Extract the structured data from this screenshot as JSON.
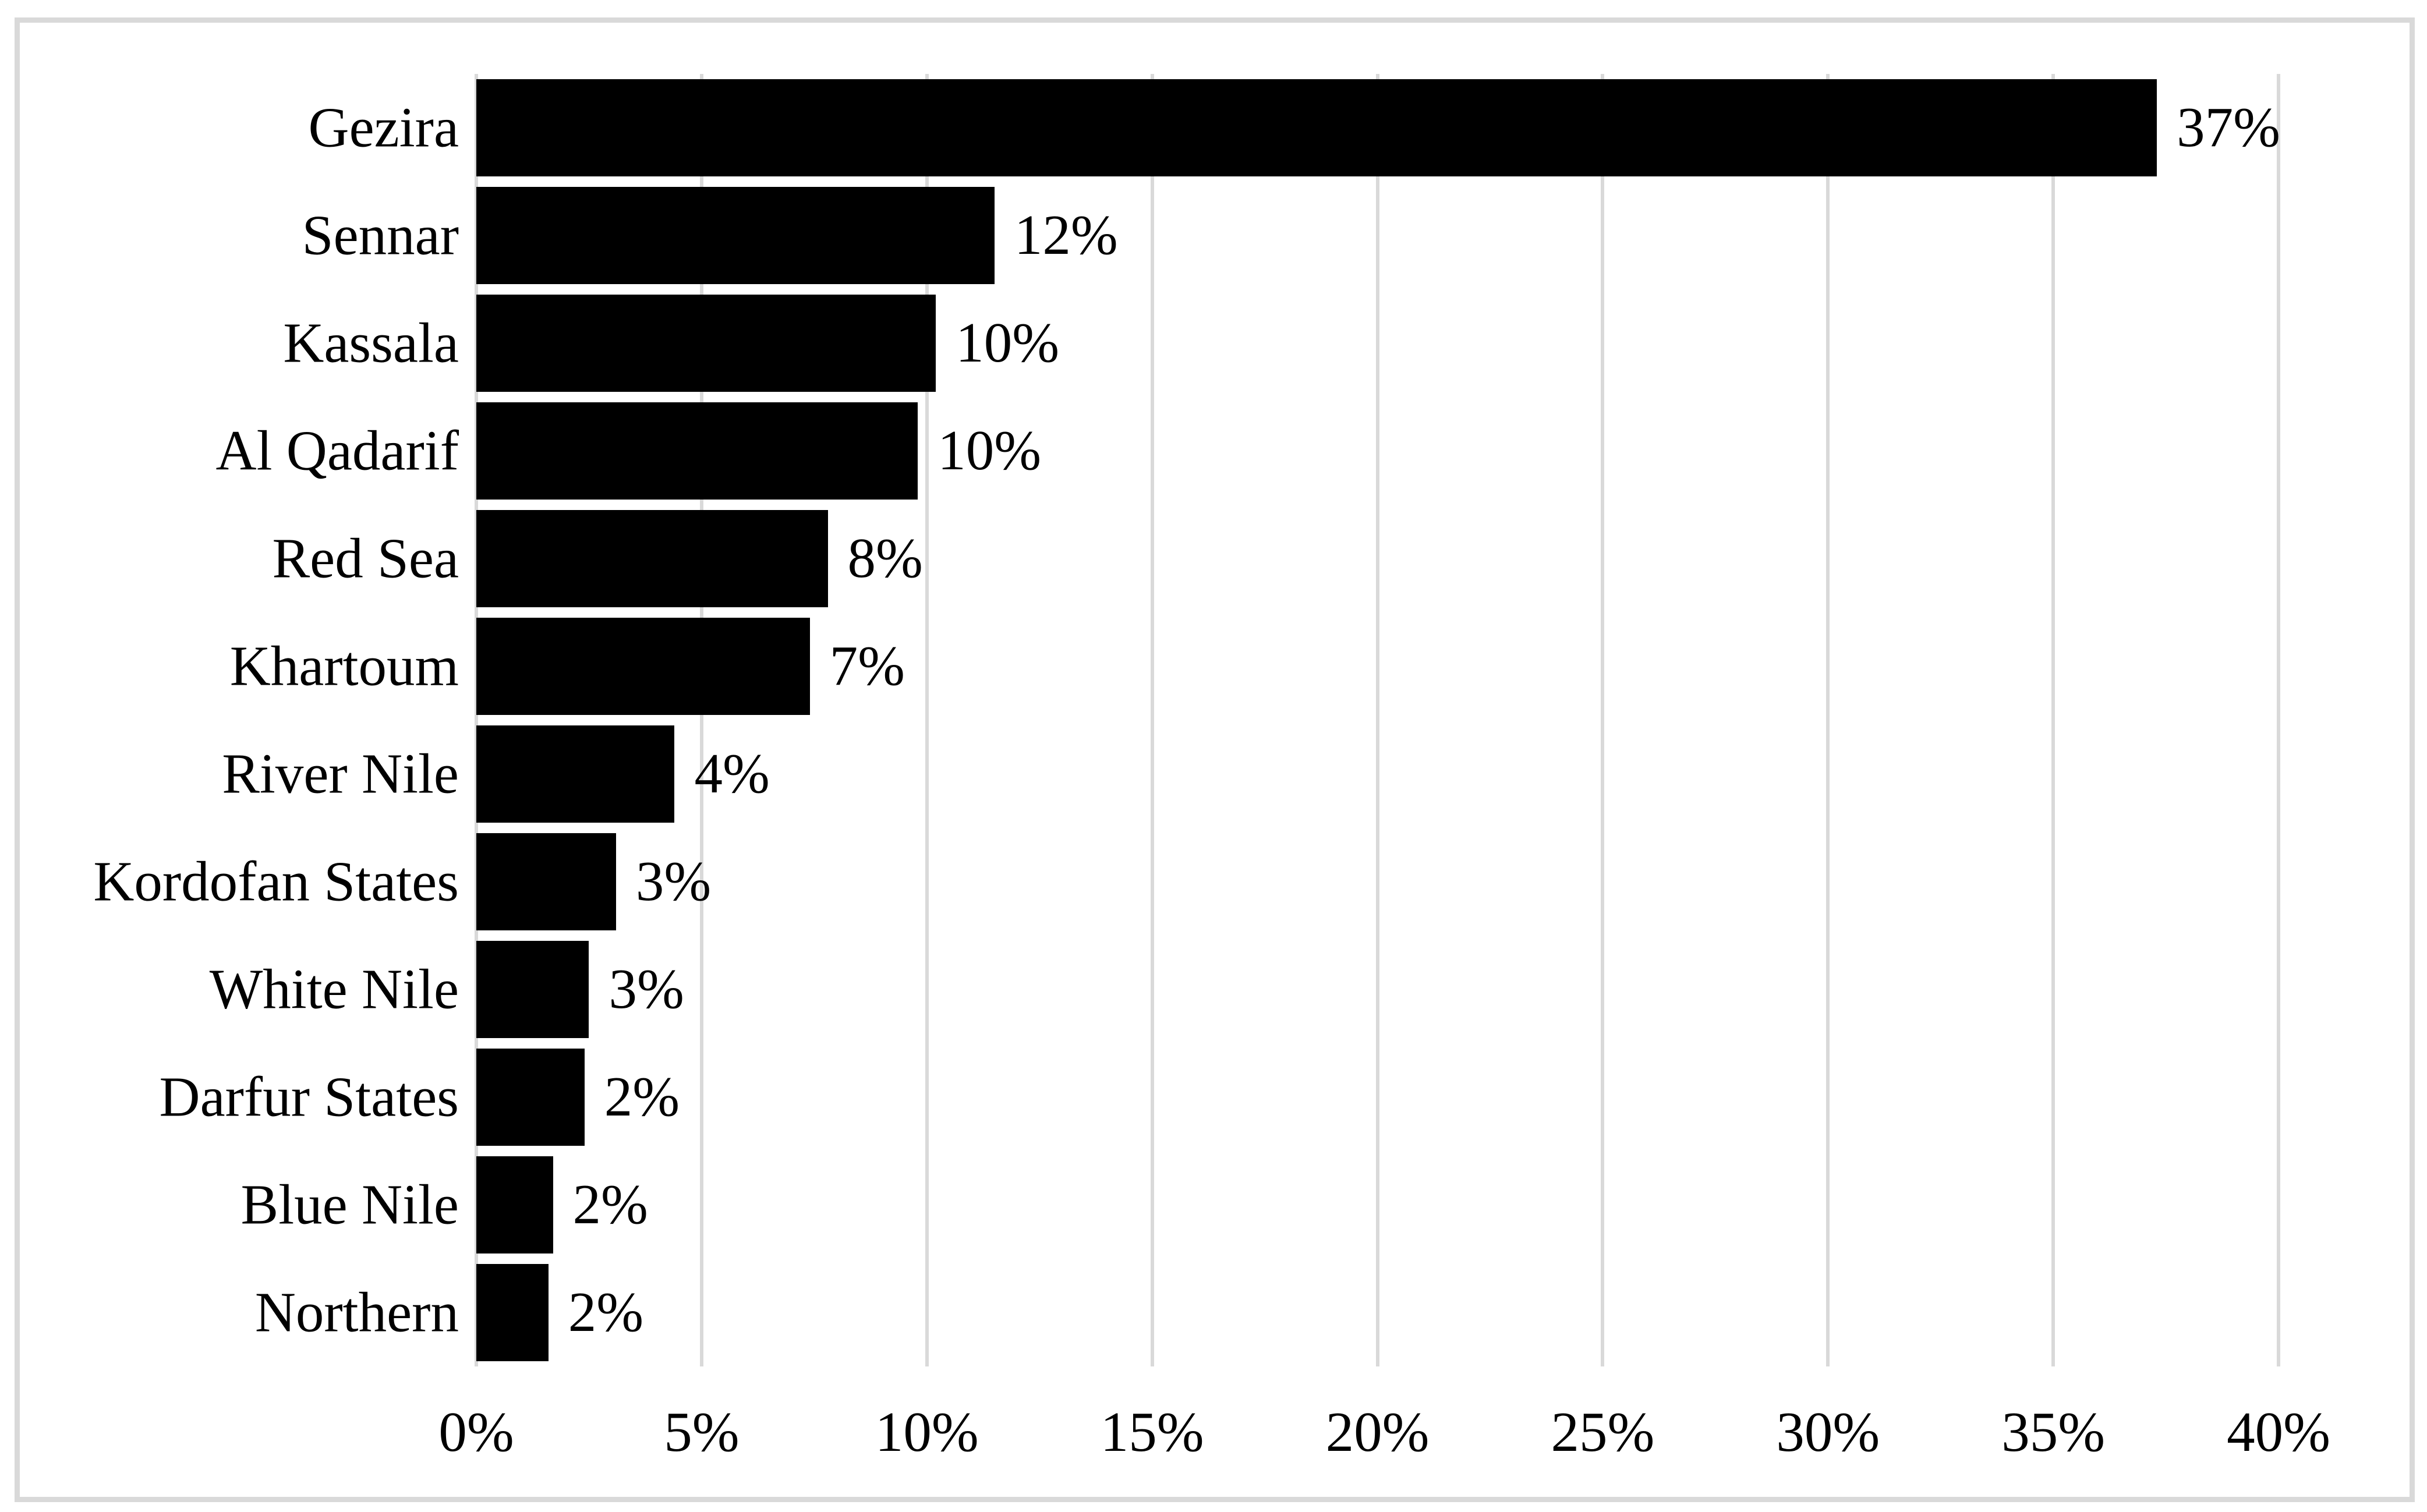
{
  "figure": {
    "background_color": "#ffffff",
    "border_color": "#d9d9d9"
  },
  "chart_data": {
    "type": "bar",
    "orientation": "horizontal",
    "categories": [
      "Gezira",
      "Sennar",
      "Kassala",
      "Al Qadarif",
      "Red Sea",
      "Khartoum",
      "River Nile",
      "Kordofan States",
      "White Nile",
      "Darfur States",
      "Blue Nile",
      "Northern"
    ],
    "values": [
      37,
      12,
      10,
      10,
      8,
      7,
      4,
      3,
      3,
      2,
      2,
      2
    ],
    "labels": [
      "37%",
      "12%",
      "10%",
      "10%",
      "8%",
      "7%",
      "4%",
      "3%",
      "3%",
      "2%",
      "2%",
      "2%"
    ],
    "bar_lengths_pct": [
      37.3,
      11.5,
      10.2,
      9.8,
      7.8,
      7.4,
      4.4,
      3.1,
      2.5,
      2.4,
      1.7,
      1.6
    ],
    "x_ticks": [
      {
        "value": 0,
        "label": "0%"
      },
      {
        "value": 5,
        "label": "5%"
      },
      {
        "value": 10,
        "label": "10%"
      },
      {
        "value": 15,
        "label": "15%"
      },
      {
        "value": 20,
        "label": "20%"
      },
      {
        "value": 25,
        "label": "25%"
      },
      {
        "value": 30,
        "label": "30%"
      },
      {
        "value": 35,
        "label": "35%"
      },
      {
        "value": 40,
        "label": "40%"
      }
    ],
    "xlim": [
      0,
      40
    ],
    "bar_color": "#000000",
    "gridline_color": "#d9d9d9",
    "grid": "vertical-gridlines-only",
    "legend": "none",
    "data_label_position": "outside-end"
  }
}
